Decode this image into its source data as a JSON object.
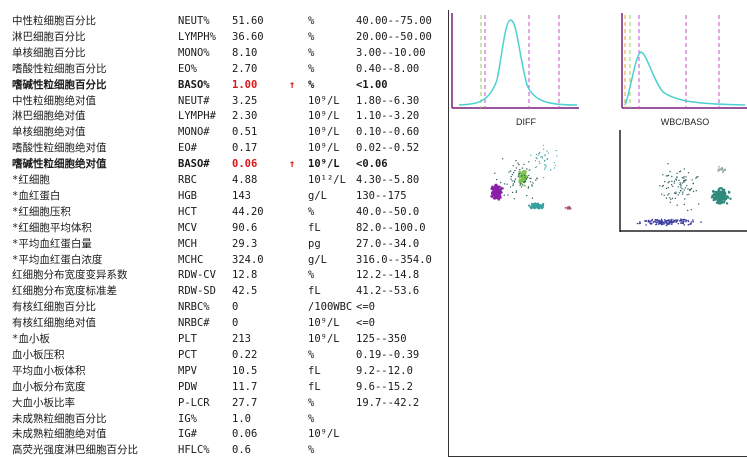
{
  "rows": [
    {
      "name": "中性粒细胞百分比",
      "code": "NEUT%",
      "value": "51.60",
      "flag": "",
      "unit": "%",
      "ref": "40.00--75.00"
    },
    {
      "name": "淋巴细胞百分比",
      "code": "LYMPH%",
      "value": "36.60",
      "flag": "",
      "unit": "%",
      "ref": "20.00--50.00"
    },
    {
      "name": "单核细胞百分比",
      "code": "MONO%",
      "value": "8.10",
      "flag": "",
      "unit": "%",
      "ref": "3.00--10.00"
    },
    {
      "name": "嗜酸性粒细胞百分比",
      "code": "EO%",
      "value": "2.70",
      "flag": "",
      "unit": "%",
      "ref": "0.40--8.00"
    },
    {
      "name": "嗜碱性粒细胞百分比",
      "code": "BASO%",
      "value": "1.00",
      "flag": "↑",
      "unit": "%",
      "ref": "<1.00",
      "bold": true,
      "abnormal": true
    },
    {
      "name": "中性粒细胞绝对值",
      "code": "NEUT#",
      "value": "3.25",
      "flag": "",
      "unit": "10⁹/L",
      "ref": "1.80--6.30"
    },
    {
      "name": "淋巴细胞绝对值",
      "code": "LYMPH#",
      "value": "2.30",
      "flag": "",
      "unit": "10⁹/L",
      "ref": "1.10--3.20"
    },
    {
      "name": "单核细胞绝对值",
      "code": "MONO#",
      "value": "0.51",
      "flag": "",
      "unit": "10⁹/L",
      "ref": "0.10--0.60"
    },
    {
      "name": "嗜酸性粒细胞绝对值",
      "code": "EO#",
      "value": "0.17",
      "flag": "",
      "unit": "10⁹/L",
      "ref": "0.02--0.52"
    },
    {
      "name": "嗜碱性粒细胞绝对值",
      "code": "BASO#",
      "value": "0.06",
      "flag": "↑",
      "unit": "10⁹/L",
      "ref": "<0.06",
      "bold": true,
      "abnormal": true
    },
    {
      "name": "*红细胞",
      "code": "RBC",
      "value": "4.88",
      "flag": "",
      "unit": "10¹²/L",
      "ref": "4.30--5.80"
    },
    {
      "name": "*血红蛋白",
      "code": "HGB",
      "value": "143",
      "flag": "",
      "unit": "g/L",
      "ref": "130--175"
    },
    {
      "name": "*红细胞压积",
      "code": "HCT",
      "value": "44.20",
      "flag": "",
      "unit": "%",
      "ref": "40.0--50.0"
    },
    {
      "name": "*红细胞平均体积",
      "code": "MCV",
      "value": "90.6",
      "flag": "",
      "unit": "fL",
      "ref": "82.0--100.0"
    },
    {
      "name": "*平均血红蛋白量",
      "code": "MCH",
      "value": "29.3",
      "flag": "",
      "unit": "pg",
      "ref": "27.0--34.0"
    },
    {
      "name": "*平均血红蛋白浓度",
      "code": "MCHC",
      "value": "324.0",
      "flag": "",
      "unit": "g/L",
      "ref": "316.0--354.0"
    },
    {
      "name": "红细胞分布宽度变异系数",
      "code": "RDW-CV",
      "value": "12.8",
      "flag": "",
      "unit": "%",
      "ref": "12.2--14.8"
    },
    {
      "name": "红细胞分布宽度标准差",
      "code": "RDW-SD",
      "value": "42.5",
      "flag": "",
      "unit": "fL",
      "ref": "41.2--53.6"
    },
    {
      "name": "有核红细胞百分比",
      "code": "NRBC%",
      "value": "0",
      "flag": "",
      "unit": "/100WBC",
      "ref": "<=0"
    },
    {
      "name": "有核红细胞绝对值",
      "code": "NRBC#",
      "value": "0",
      "flag": "",
      "unit": "10⁹/L",
      "ref": "<=0"
    },
    {
      "name": "*血小板",
      "code": "PLT",
      "value": "213",
      "flag": "",
      "unit": "10⁹/L",
      "ref": "125--350"
    },
    {
      "name": "血小板压积",
      "code": "PCT",
      "value": "0.22",
      "flag": "",
      "unit": "%",
      "ref": "0.19--0.39"
    },
    {
      "name": "平均血小板体积",
      "code": "MPV",
      "value": "10.5",
      "flag": "",
      "unit": "fL",
      "ref": "9.2--12.0"
    },
    {
      "name": "血小板分布宽度",
      "code": "PDW",
      "value": "11.7",
      "flag": "",
      "unit": "fL",
      "ref": "9.6--15.2"
    },
    {
      "name": "大血小板比率",
      "code": "P-LCR",
      "value": "27.7",
      "flag": "",
      "unit": "%",
      "ref": "19.7--42.2"
    },
    {
      "name": "未成熟粒细胞百分比",
      "code": "IG%",
      "value": "1.0",
      "flag": "",
      "unit": "%",
      "ref": ""
    },
    {
      "name": "未成熟粒细胞绝对值",
      "code": "IG#",
      "value": "0.06",
      "flag": "",
      "unit": "10⁹/L",
      "ref": ""
    },
    {
      "name": "高荧光强度淋巴细胞百分比",
      "code": "HFLC%",
      "value": "0.6",
      "flag": "",
      "unit": "%",
      "ref": ""
    }
  ],
  "graphs": {
    "diff_label": "DIFF",
    "wbc_baso_label": "WBC/BASO"
  },
  "colors": {
    "abnormal": "#e01414",
    "curve": "#4dd0d0",
    "axis": "#7a1f7a"
  }
}
